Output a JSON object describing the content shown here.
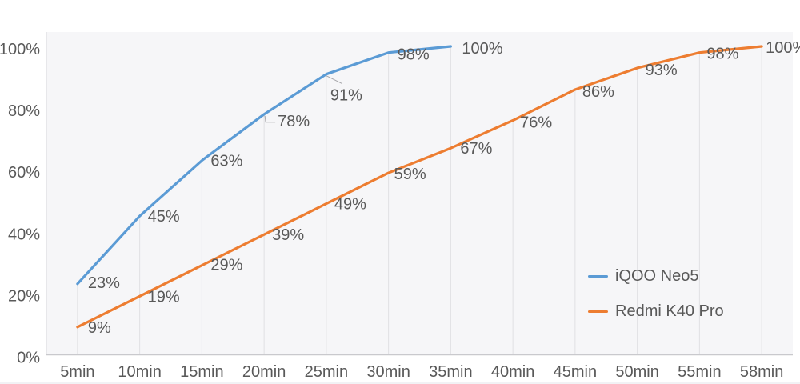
{
  "page": {
    "background": "#ffffff",
    "plot_background": "#f6f6f8",
    "text_color": "#595959",
    "grid_color": "#e0e0e3",
    "axis_color": "#c9c9cd",
    "leader_color": "#a6a6aa",
    "edge_strip_color": "#f2f2f5",
    "edge_line_color": "#e7e7ea"
  },
  "chart_data": {
    "type": "line",
    "title": "",
    "xlabel": "",
    "ylabel": "",
    "categories": [
      "5min",
      "10min",
      "15min",
      "20min",
      "25min",
      "30min",
      "35min",
      "40min",
      "45min",
      "50min",
      "55min",
      "58min"
    ],
    "y_ticks": [
      {
        "label": "0%",
        "value": 0
      },
      {
        "label": "20%",
        "value": 20
      },
      {
        "label": "40%",
        "value": 40
      },
      {
        "label": "60%",
        "value": 60
      },
      {
        "label": "80%",
        "value": 80
      },
      {
        "label": "100%",
        "value": 100
      }
    ],
    "ylim": [
      0,
      100
    ],
    "grid": "vertical-drop-lines",
    "legend_position": "right-center",
    "series": [
      {
        "name": "iQOO Neo5",
        "color": "#5B9BD5",
        "values": [
          23,
          45,
          63,
          78,
          91,
          98,
          100
        ],
        "labels": [
          "23%",
          "45%",
          "63%",
          "78%",
          "91%",
          "98%",
          "100%"
        ],
        "label_offsets": [
          [
            13,
            -2
          ],
          [
            10,
            0
          ],
          [
            11,
            0
          ],
          [
            17,
            8
          ],
          [
            5,
            26
          ],
          [
            11,
            2
          ],
          [
            14,
            2
          ]
        ],
        "leaders": [
          {
            "index": 3,
            "points": [
              [
                1,
                2
              ],
              [
                2,
                10
              ],
              [
                14,
                10
              ]
            ]
          },
          {
            "index": 4,
            "points": [
              [
                0,
                2
              ],
              [
                20,
                12
              ]
            ]
          }
        ]
      },
      {
        "name": "Redmi K40 Pro",
        "color": "#ED7D31",
        "values": [
          9,
          19,
          29,
          39,
          49,
          59,
          67,
          76,
          86,
          93,
          98,
          100
        ],
        "labels": [
          "9%",
          "19%",
          "29%",
          "39%",
          "49%",
          "59%",
          "67%",
          "76%",
          "86%",
          "93%",
          "98%",
          "100%"
        ],
        "label_offsets": [
          [
            13,
            0
          ],
          [
            10,
            0
          ],
          [
            11,
            -1
          ],
          [
            10,
            0
          ],
          [
            10,
            0
          ],
          [
            7,
            1
          ],
          [
            12,
            0
          ],
          [
            9,
            2
          ],
          [
            9,
            2
          ],
          [
            10,
            2
          ],
          [
            9,
            1
          ],
          [
            5,
            1
          ]
        ],
        "leaders": []
      }
    ]
  }
}
